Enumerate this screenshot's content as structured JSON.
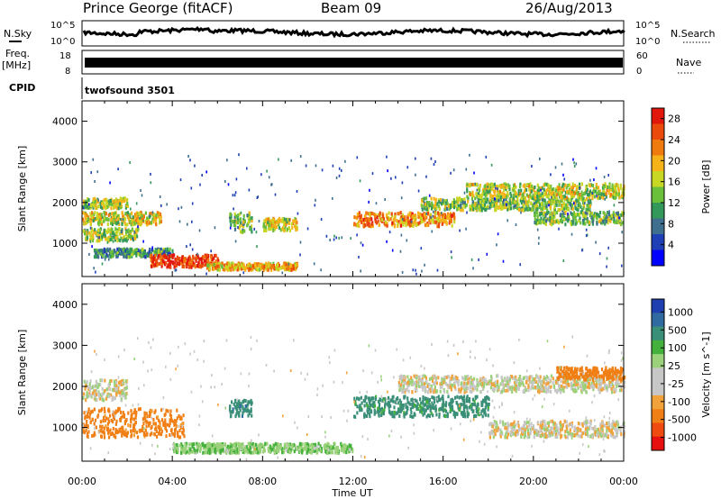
{
  "header": {
    "station": "Prince George (fitACF)",
    "beam": "Beam 09",
    "date": "26/Aug/2013"
  },
  "left_labels": {
    "nsky": "N.Sky",
    "freq": "Freq.",
    "freq_unit": "[MHz]",
    "cpid": "CPID"
  },
  "right_labels": {
    "nsearch": "N.Search",
    "nave": "Nave"
  },
  "strip_ticks": {
    "noise_hi": "10^5",
    "noise_lo": "10^0",
    "freq_hi": "18",
    "freq_lo": "8",
    "nave_hi": "60",
    "nave_lo": "0"
  },
  "cpid_text": "twofsound 3501",
  "chart_data": [
    {
      "type": "heatmap",
      "name": "power-panel",
      "xlabel": "Time UT",
      "ylabel": "Slant Range [km]",
      "x_ticks": [
        "00:00",
        "04:00",
        "08:00",
        "12:00",
        "16:00",
        "20:00",
        "00:00"
      ],
      "xlim_hours": [
        0,
        24
      ],
      "ylim": [
        180,
        4500
      ],
      "y_ticks": [
        1000,
        2000,
        3000,
        4000
      ],
      "colorbar": {
        "label": "Power [dB]",
        "ticks": [
          "4",
          "8",
          "12",
          "16",
          "20",
          "24",
          "28"
        ],
        "range": [
          0,
          30
        ],
        "colors": [
          "#0000ff",
          "#1f3fb7",
          "#3f6f8f",
          "#33995a",
          "#6abf3b",
          "#c8d624",
          "#f5b219",
          "#ef7a0d",
          "#ea4a0b",
          "#e1170b"
        ]
      },
      "bands": [
        {
          "t0": 0.0,
          "t1": 2.0,
          "r0": 1900,
          "r1": 2150,
          "v": 15
        },
        {
          "t0": 0.0,
          "t1": 3.5,
          "r0": 1500,
          "r1": 1800,
          "v": 17
        },
        {
          "t0": 0.0,
          "t1": 2.5,
          "r0": 1100,
          "r1": 1400,
          "v": 14
        },
        {
          "t0": 0.5,
          "t1": 4.0,
          "r0": 700,
          "r1": 900,
          "v": 10
        },
        {
          "t0": 3.0,
          "t1": 6.0,
          "r0": 450,
          "r1": 750,
          "v": 27
        },
        {
          "t0": 5.5,
          "t1": 9.5,
          "r0": 380,
          "r1": 550,
          "v": 20
        },
        {
          "t0": 6.5,
          "t1": 7.5,
          "r0": 1300,
          "r1": 1800,
          "v": 13
        },
        {
          "t0": 8.0,
          "t1": 9.5,
          "r0": 1350,
          "r1": 1650,
          "v": 17
        },
        {
          "t0": 12.0,
          "t1": 16.5,
          "r0": 1450,
          "r1": 1800,
          "v": 22
        },
        {
          "t0": 15.0,
          "t1": 22.5,
          "r0": 1850,
          "r1": 2150,
          "v": 14
        },
        {
          "t0": 17.0,
          "t1": 24.0,
          "r0": 2150,
          "r1": 2500,
          "v": 16
        },
        {
          "t0": 20.0,
          "t1": 24.0,
          "r0": 1500,
          "r1": 1800,
          "v": 13
        }
      ]
    },
    {
      "type": "heatmap",
      "name": "velocity-panel",
      "xlabel": "Time UT",
      "ylabel": "Slant Range [km]",
      "x_ticks": [
        "00:00",
        "04:00",
        "08:00",
        "12:00",
        "16:00",
        "20:00",
        "00:00"
      ],
      "xlim_hours": [
        0,
        24
      ],
      "ylim": [
        180,
        4500
      ],
      "y_ticks": [
        1000,
        2000,
        3000,
        4000
      ],
      "colorbar": {
        "label": "Velocity [m s^-1]",
        "ticks": [
          "1000",
          "500",
          "100",
          "25",
          "-25",
          "-100",
          "-500",
          "-1000"
        ],
        "colors": [
          "#1e3fb0",
          "#2f6aa0",
          "#3a8f78",
          "#44b13c",
          "#9bd17a",
          "#c7c7c7",
          "#c7c7c7",
          "#f2a23a",
          "#f07f15",
          "#ef4a10",
          "#e61010"
        ]
      },
      "bands": [
        {
          "t0": 0.0,
          "t1": 4.5,
          "r0": 800,
          "r1": 1500,
          "v": -150
        },
        {
          "t0": 4.0,
          "t1": 12.0,
          "r0": 420,
          "r1": 650,
          "v": 80
        },
        {
          "t0": 6.5,
          "t1": 7.5,
          "r0": 1300,
          "r1": 1700,
          "v": 450
        },
        {
          "t0": 12.0,
          "t1": 18.0,
          "r0": 1300,
          "r1": 1800,
          "v": 300
        },
        {
          "t0": 14.0,
          "t1": 24.0,
          "r0": 1900,
          "r1": 2300,
          "v": 0
        },
        {
          "t0": 18.0,
          "t1": 24.0,
          "r0": 800,
          "r1": 1200,
          "v": 0
        },
        {
          "t0": 21.0,
          "t1": 24.0,
          "r0": 2200,
          "r1": 2500,
          "v": -180
        },
        {
          "t0": 0.0,
          "t1": 2.0,
          "r0": 1700,
          "r1": 2200,
          "v": 0
        }
      ]
    }
  ]
}
